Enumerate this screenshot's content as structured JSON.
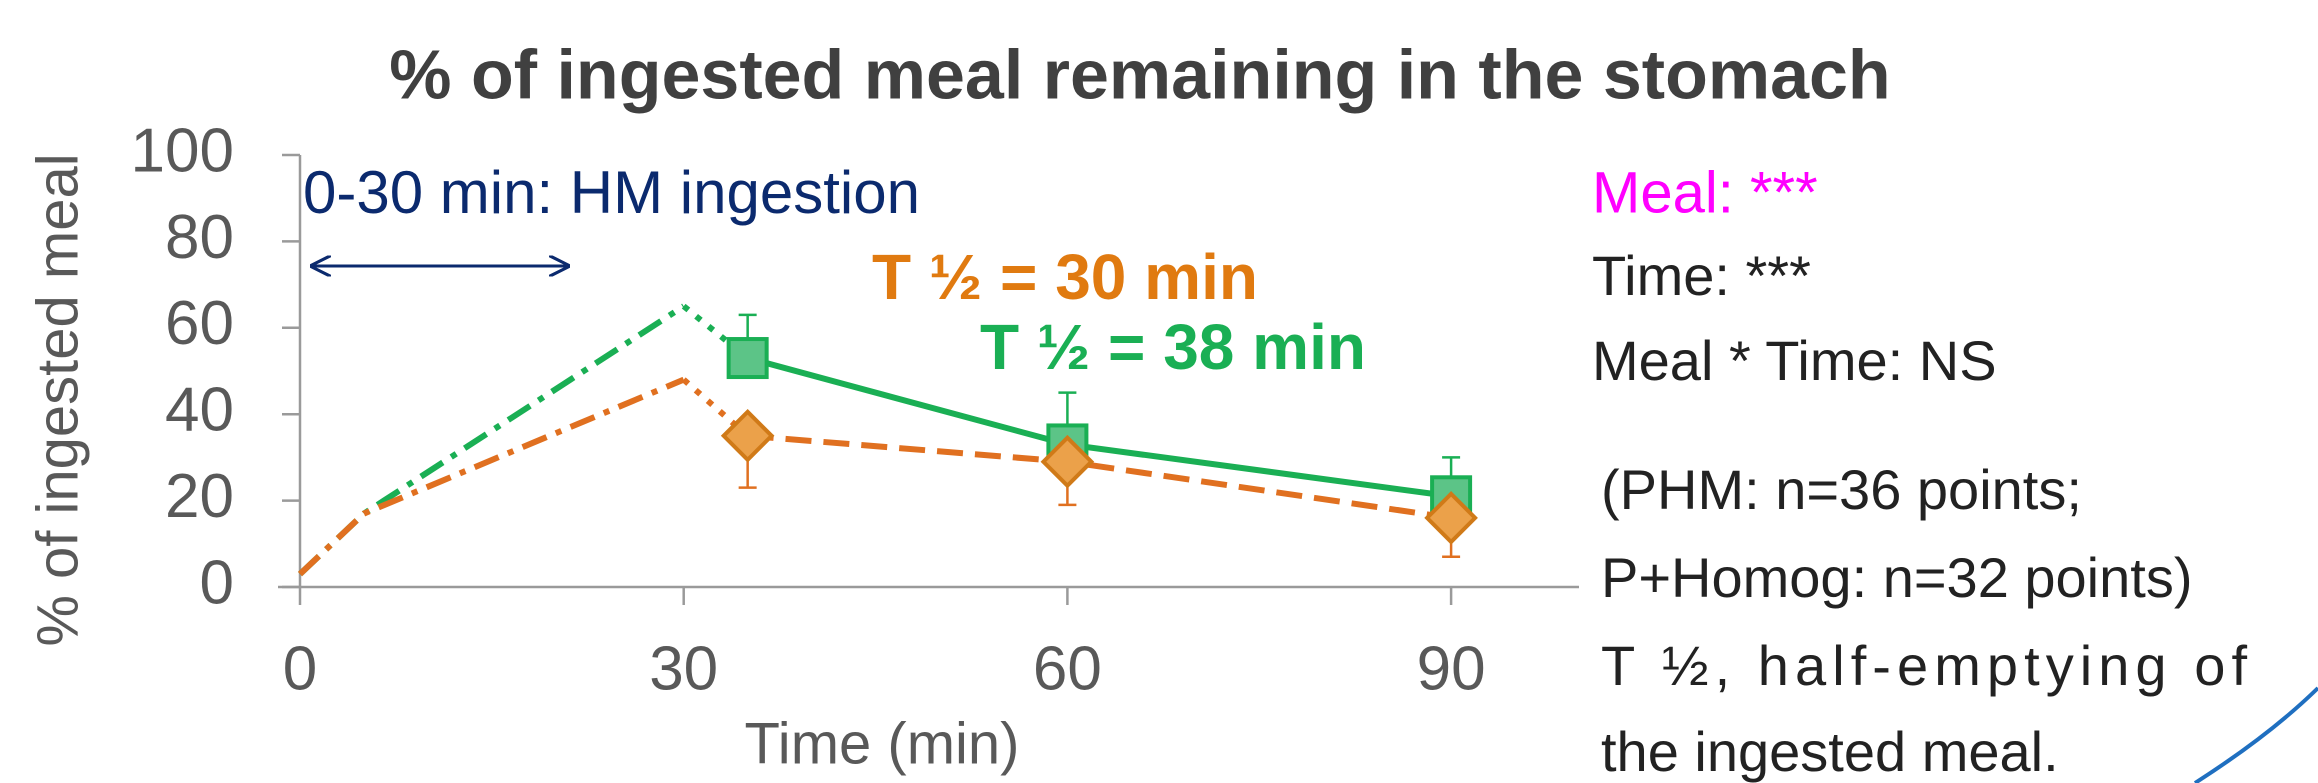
{
  "chart_data": {
    "type": "line",
    "title": "% of ingested meal remaining in the stomach",
    "x_label": "Time (min)",
    "y_label": "% of ingested meal",
    "xlim": [
      0,
      100
    ],
    "xticks": [
      0,
      30,
      60,
      90
    ],
    "ylim": [
      0,
      100
    ],
    "yticks": [
      0,
      20,
      40,
      60,
      80,
      100
    ],
    "series": [
      {
        "color": "#1aaf54",
        "marker": "square",
        "error_direction": "up",
        "ingestion_x": [
          0,
          5,
          30
        ],
        "ingestion_values": [
          3,
          17,
          65
        ],
        "x": [
          35,
          60,
          90
        ],
        "values": [
          53,
          33,
          21
        ],
        "errors": [
          10,
          12,
          9
        ]
      },
      {
        "color": "#e07020",
        "marker": "diamond",
        "error_direction": "down",
        "ingestion_x": [
          0,
          5,
          30
        ],
        "ingestion_values": [
          3,
          17,
          48
        ],
        "x": [
          35,
          60,
          90
        ],
        "values": [
          35,
          29,
          16
        ],
        "errors": [
          12,
          10,
          9
        ]
      }
    ],
    "annotations": {
      "ingestion": "0-30 min: HM ingestion",
      "t_half_orange": "T ½ = 30 min",
      "t_half_green": "T ½ = 38 min",
      "meal": "Meal: ***",
      "time": "Time: ***",
      "interaction": "Meal * Time: NS",
      "note_lines": [
        "(PHM: n=36 points;",
        "P+Homog:  n=32 points)",
        "T ½, half-emptying of",
        "the ingested meal."
      ]
    }
  }
}
